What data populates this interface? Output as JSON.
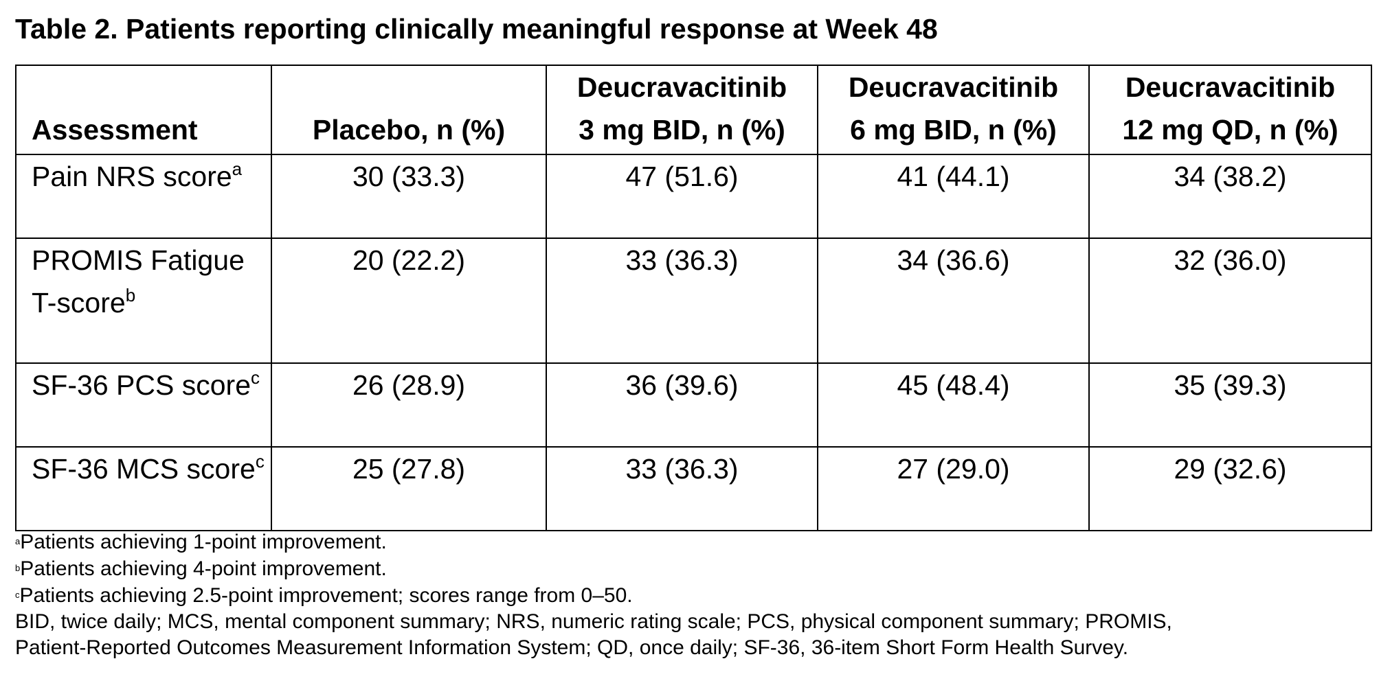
{
  "title": "Table 2. Patients reporting clinically meaningful response at Week 48",
  "table": {
    "headers": [
      {
        "line1": "",
        "line2": "Assessment"
      },
      {
        "line1": "",
        "line2": "Placebo, n (%)"
      },
      {
        "line1": "Deucravacitinib",
        "line2": "3 mg BID, n (%)"
      },
      {
        "line1": "Deucravacitinib",
        "line2": "6 mg BID, n (%)"
      },
      {
        "line1": "Deucravacitinib",
        "line2": "12 mg QD, n (%)"
      }
    ],
    "rows": [
      {
        "label": "Pain NRS score",
        "sup": "a",
        "cells": [
          "30 (33.3)",
          "47 (51.6)",
          "41 (44.1)",
          "34 (38.2)"
        ]
      },
      {
        "label": "PROMIS Fatigue T-score",
        "sup": "b",
        "cells": [
          "20 (22.2)",
          "33 (36.3)",
          "34 (36.6)",
          "32 (36.0)"
        ]
      },
      {
        "label": "SF-36 PCS score",
        "sup": "c",
        "cells": [
          "26 (28.9)",
          "36 (39.6)",
          "45 (48.4)",
          "35 (39.3)"
        ]
      },
      {
        "label": "SF-36 MCS score",
        "sup": "c",
        "cells": [
          "25 (27.8)",
          "33 (36.3)",
          "27 (29.0)",
          "29 (32.6)"
        ]
      }
    ]
  },
  "footnotes": [
    {
      "mark": "a",
      "text": "Patients achieving 1-point improvement."
    },
    {
      "mark": "b",
      "text": "Patients achieving 4-point improvement."
    },
    {
      "mark": "c",
      "text": "Patients achieving 2.5-point improvement; scores range from 0–50."
    }
  ],
  "abbreviations": [
    "BID, twice daily; MCS, mental component summary; NRS, numeric rating scale; PCS, physical component summary; PROMIS,",
    "Patient-Reported Outcomes Measurement Information System; QD, once daily; SF-36, 36-item Short Form Health Survey."
  ]
}
